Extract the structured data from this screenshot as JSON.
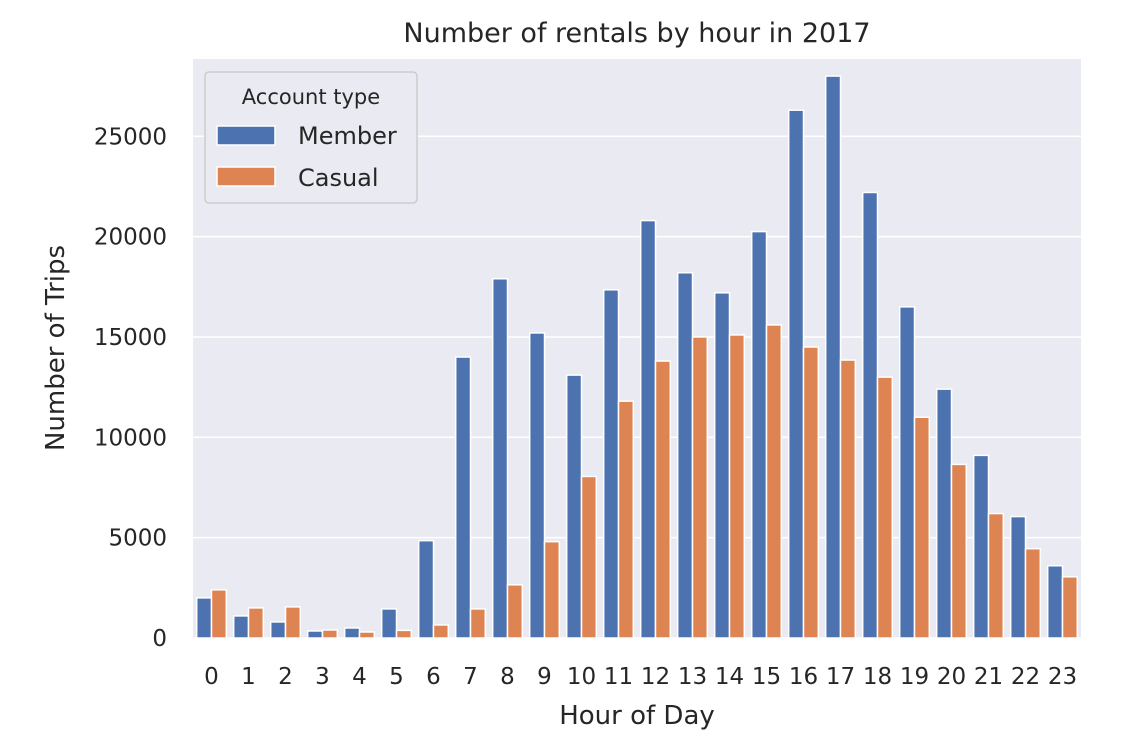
{
  "chart_data": {
    "type": "bar",
    "title": "Number of rentals by hour in 2017",
    "xlabel": "Hour of Day",
    "ylabel": "Number of Trips",
    "categories": [
      "0",
      "1",
      "2",
      "3",
      "4",
      "5",
      "6",
      "7",
      "8",
      "9",
      "10",
      "11",
      "12",
      "13",
      "14",
      "15",
      "16",
      "17",
      "18",
      "19",
      "20",
      "21",
      "22",
      "23"
    ],
    "series": [
      {
        "name": "Member",
        "color": "#4C72B0",
        "values": [
          2000,
          1100,
          800,
          350,
          500,
          1450,
          4850,
          14000,
          17900,
          15200,
          13100,
          17350,
          20800,
          18200,
          17200,
          20250,
          26300,
          28000,
          22200,
          16500,
          12400,
          9100,
          6050,
          3600
        ]
      },
      {
        "name": "Casual",
        "color": "#DD8452",
        "values": [
          2400,
          1500,
          1550,
          400,
          300,
          380,
          650,
          1450,
          2650,
          4800,
          8050,
          11800,
          13800,
          15000,
          15100,
          15600,
          14500,
          13850,
          13000,
          11000,
          8650,
          6200,
          4450,
          3050
        ]
      }
    ],
    "ylim": [
      0,
      28850
    ],
    "yticks": [
      0,
      5000,
      10000,
      15000,
      20000,
      25000
    ],
    "grid": true,
    "legend": {
      "title": "Account type",
      "placement": "top-left"
    },
    "background_color": "#EAEAF2",
    "grid_color": "#FFFFFF"
  }
}
